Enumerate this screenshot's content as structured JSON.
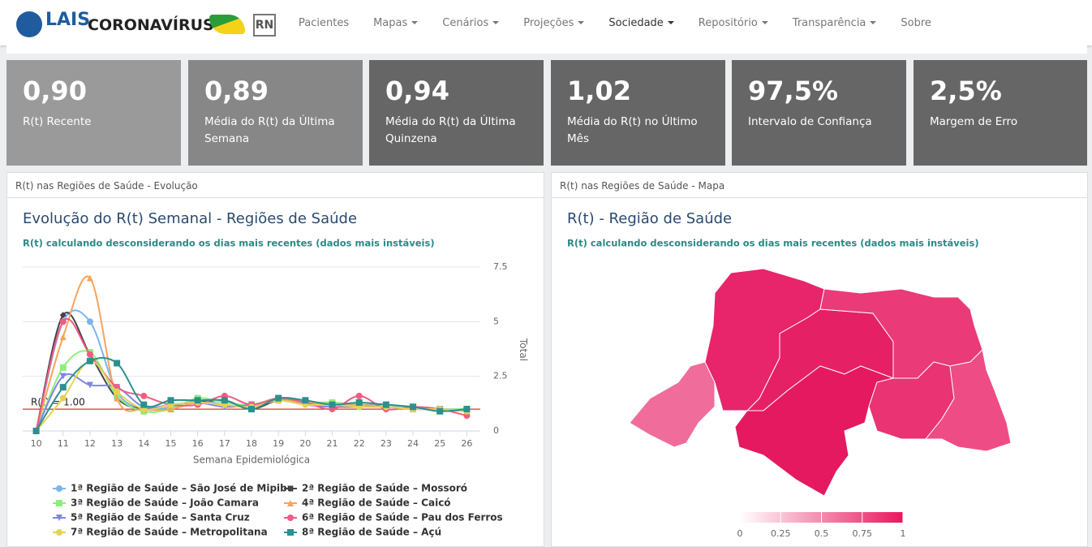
{
  "nav": {
    "logo": "LAIS",
    "brand": "CORONAVÍRUS",
    "state": "RN",
    "items": [
      "Pacientes",
      "Mapas",
      "Cenários",
      "Projeções",
      "Sociedade",
      "Repositório",
      "Transparência",
      "Sobre"
    ]
  },
  "cards": [
    {
      "value": "0,90",
      "label": "R(t) Recente"
    },
    {
      "value": "0,89",
      "label": "Média do R(t) da Última Semana"
    },
    {
      "value": "0,94",
      "label": "Média do R(t) da Última Quinzena"
    },
    {
      "value": "1,02",
      "label": "Média do R(t) no Último Mês"
    },
    {
      "value": "97,5%",
      "label": "Intervalo de Confiança"
    },
    {
      "value": "2,5%",
      "label": "Margem de Erro"
    }
  ],
  "left_panel": {
    "header": "R(t) nas Regiões de Saúde - Evolução"
  },
  "right_panel": {
    "header": "R(t) nas Regiões de Saúde - Mapa"
  },
  "chart_data": {
    "type": "line",
    "title": "Evolução do R(t) Semanal - Regiões de Saúde",
    "subtitle": "R(t) calculando desconsiderando os dias mais recentes (dados mais instáveis)",
    "x_label": "Semana Epidemiológica",
    "y_label": "Total",
    "x": [
      10,
      11,
      12,
      13,
      14,
      15,
      16,
      17,
      18,
      19,
      20,
      21,
      22,
      23,
      24,
      25,
      26
    ],
    "xlim": [
      9.5,
      26.5
    ],
    "xticks": [
      10,
      11,
      12,
      13,
      14,
      15,
      16,
      17,
      18,
      19,
      20,
      21,
      22,
      23,
      24,
      25,
      26
    ],
    "ylim": [
      0,
      7.5
    ],
    "yticks": [
      0,
      2.5,
      5,
      7.5
    ],
    "grid": true,
    "reference_line": {
      "value": 1,
      "label": "R(t) = 1.00",
      "color": "#cc0000"
    },
    "series": [
      {
        "name": "1ª Região de Saúde – São José de Mipibu",
        "color": "#7cb5ec",
        "marker": "circle",
        "values": [
          0,
          5.0,
          5.0,
          1.8,
          1.0,
          1.1,
          1.4,
          1.2,
          1.1,
          1.4,
          1.3,
          1.3,
          1.2,
          1.2,
          1.1,
          1.0,
          1.0
        ]
      },
      {
        "name": "2ª Região de Saúde – Mossoró",
        "color": "#434348",
        "marker": "diamond",
        "values": [
          0,
          5.3,
          3.5,
          1.5,
          1.0,
          1.2,
          1.3,
          1.4,
          1.0,
          1.4,
          1.3,
          1.2,
          1.2,
          1.1,
          1.1,
          1.0,
          0.9
        ]
      },
      {
        "name": "3ª Região de Saúde – João Camara",
        "color": "#90ed7d",
        "marker": "square",
        "values": [
          0,
          2.9,
          3.6,
          1.6,
          0.9,
          1.0,
          1.5,
          1.3,
          1.2,
          1.5,
          1.3,
          1.3,
          1.2,
          1.1,
          1.1,
          1.0,
          1.0
        ]
      },
      {
        "name": "4ª Região de Saúde – Caicó",
        "color": "#f7a35c",
        "marker": "triangle",
        "values": [
          0,
          4.3,
          7.0,
          1.5,
          1.0,
          1.0,
          1.3,
          1.2,
          1.1,
          1.4,
          1.3,
          1.2,
          1.2,
          1.1,
          1.0,
          1.0,
          0.9
        ]
      },
      {
        "name": "5ª Região de Saúde – Santa Cruz",
        "color": "#8085e9",
        "marker": "triangle-down",
        "values": [
          0,
          2.5,
          2.1,
          2.0,
          1.1,
          1.2,
          1.3,
          1.1,
          1.2,
          1.4,
          1.2,
          1.1,
          1.1,
          1.1,
          1.0,
          1.0,
          0.9
        ]
      },
      {
        "name": "6ª Região de Saúde – Pau dos Ferros",
        "color": "#f15c80",
        "marker": "circle",
        "values": [
          0,
          5.0,
          3.5,
          2.0,
          1.6,
          1.2,
          1.2,
          1.6,
          1.2,
          1.5,
          1.3,
          1.0,
          1.6,
          1.0,
          1.1,
          1.0,
          0.7
        ]
      },
      {
        "name": "7ª Região de Saúde – Metropolitana",
        "color": "#e4d354",
        "marker": "circle",
        "values": [
          0,
          1.5,
          3.2,
          1.8,
          1.0,
          1.2,
          1.3,
          1.2,
          1.1,
          1.4,
          1.2,
          1.2,
          1.1,
          1.1,
          1.0,
          1.0,
          0.9
        ]
      },
      {
        "name": "8ª Região de Saúde – Açú",
        "color": "#2b908f",
        "marker": "square",
        "values": [
          0,
          2.0,
          3.2,
          3.1,
          1.2,
          1.4,
          1.4,
          1.4,
          1.0,
          1.5,
          1.4,
          1.2,
          1.3,
          1.2,
          1.1,
          0.9,
          1.0
        ]
      }
    ]
  },
  "map": {
    "title": "R(t) - Região de Saúde",
    "subtitle": "R(t) calculando desconsiderando os dias mais recentes (dados mais instáveis)",
    "colorbar_lim": [
      0,
      1
    ],
    "colorbar_ticks": [
      0,
      0.25,
      0.5,
      0.75,
      1
    ]
  }
}
